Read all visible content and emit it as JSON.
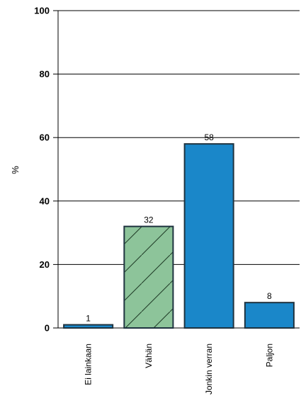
{
  "chart_data": {
    "type": "bar",
    "ylabel": "%",
    "ylim": [
      0,
      100
    ],
    "yticks": [
      0,
      20,
      40,
      60,
      80,
      100
    ],
    "grid": true,
    "categories": [
      "Ei lainkaan",
      "Vähän",
      "Jonkin verran",
      "Paljon"
    ],
    "values": [
      1,
      32,
      58,
      8
    ],
    "data_labels": [
      "1",
      "32",
      "58",
      "8"
    ],
    "bar_fills": [
      "#1a87c9",
      "#8dc49a",
      "#1a87c9",
      "#1a87c9"
    ],
    "bar_hatched": [
      false,
      true,
      false,
      false
    ],
    "hatch_color": "#1e3a25",
    "edge_color": "#1f3340"
  }
}
